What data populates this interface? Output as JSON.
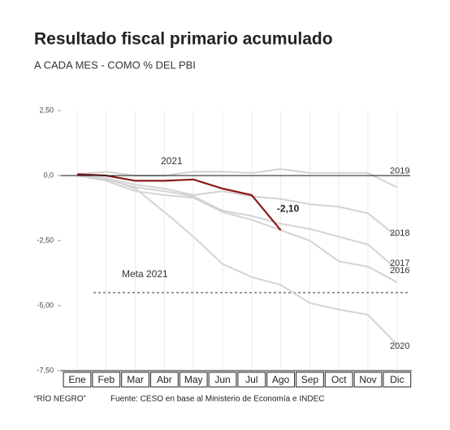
{
  "chart_data": {
    "type": "line",
    "title": "Resultado fiscal primario acumulado",
    "subtitle": "A CADA MES - COMO % DEL PBI",
    "categories": [
      "Ene",
      "Feb",
      "Mar",
      "Abr",
      "May",
      "Jun",
      "Jul",
      "Ago",
      "Sep",
      "Oct",
      "Nov",
      "Dic"
    ],
    "series": [
      {
        "name": "2019",
        "color": "#d3d3d3",
        "values": [
          0.05,
          0.15,
          0.0,
          0.0,
          0.15,
          0.15,
          0.1,
          0.25,
          0.1,
          0.1,
          0.1,
          -0.45
        ]
      },
      {
        "name": "2018",
        "color": "#d3d3d3",
        "values": [
          0.0,
          -0.1,
          -0.35,
          -0.5,
          -0.75,
          -0.6,
          -0.8,
          -0.9,
          -1.1,
          -1.2,
          -1.45,
          -2.35
        ]
      },
      {
        "name": "2017",
        "color": "#d3d3d3",
        "values": [
          0.0,
          -0.15,
          -0.45,
          -0.6,
          -0.8,
          -1.35,
          -1.55,
          -1.85,
          -2.05,
          -2.35,
          -2.65,
          -3.6
        ]
      },
      {
        "name": "2016",
        "color": "#d3d3d3",
        "values": [
          0.0,
          -0.2,
          -0.6,
          -0.75,
          -0.85,
          -1.4,
          -1.7,
          -2.1,
          -2.5,
          -3.3,
          -3.5,
          -4.1
        ]
      },
      {
        "name": "2020",
        "color": "#d3d3d3",
        "values": [
          0.0,
          -0.1,
          -0.5,
          -1.4,
          -2.35,
          -3.4,
          -3.9,
          -4.2,
          -4.9,
          -5.15,
          -5.35,
          -6.5
        ]
      },
      {
        "name": "2021",
        "color": "#8b1a1a",
        "values": [
          0.05,
          0.0,
          -0.2,
          -0.2,
          -0.15,
          -0.5,
          -0.75,
          -2.1,
          null,
          null,
          null,
          null
        ],
        "value_labels": [
          null,
          null,
          null,
          null,
          null,
          null,
          null,
          "-2,10",
          null,
          null,
          null,
          null
        ]
      }
    ],
    "reference_line": {
      "label": "Meta 2021",
      "value": -4.5
    },
    "ylim": [
      -7.5,
      2.5
    ],
    "yticks": [
      {
        "value": -7.5,
        "label": "-7,50"
      },
      {
        "value": -5,
        "label": "-5,00"
      },
      {
        "value": -2.5,
        "label": "-2,50"
      },
      {
        "value": 0,
        "label": "0,0"
      },
      {
        "value": 2.5,
        "label": "2,50"
      }
    ],
    "credit": "“RÍO NEGRO”",
    "source": "Fuente: CESO en base al Ministerio de Economía e INDEC"
  }
}
